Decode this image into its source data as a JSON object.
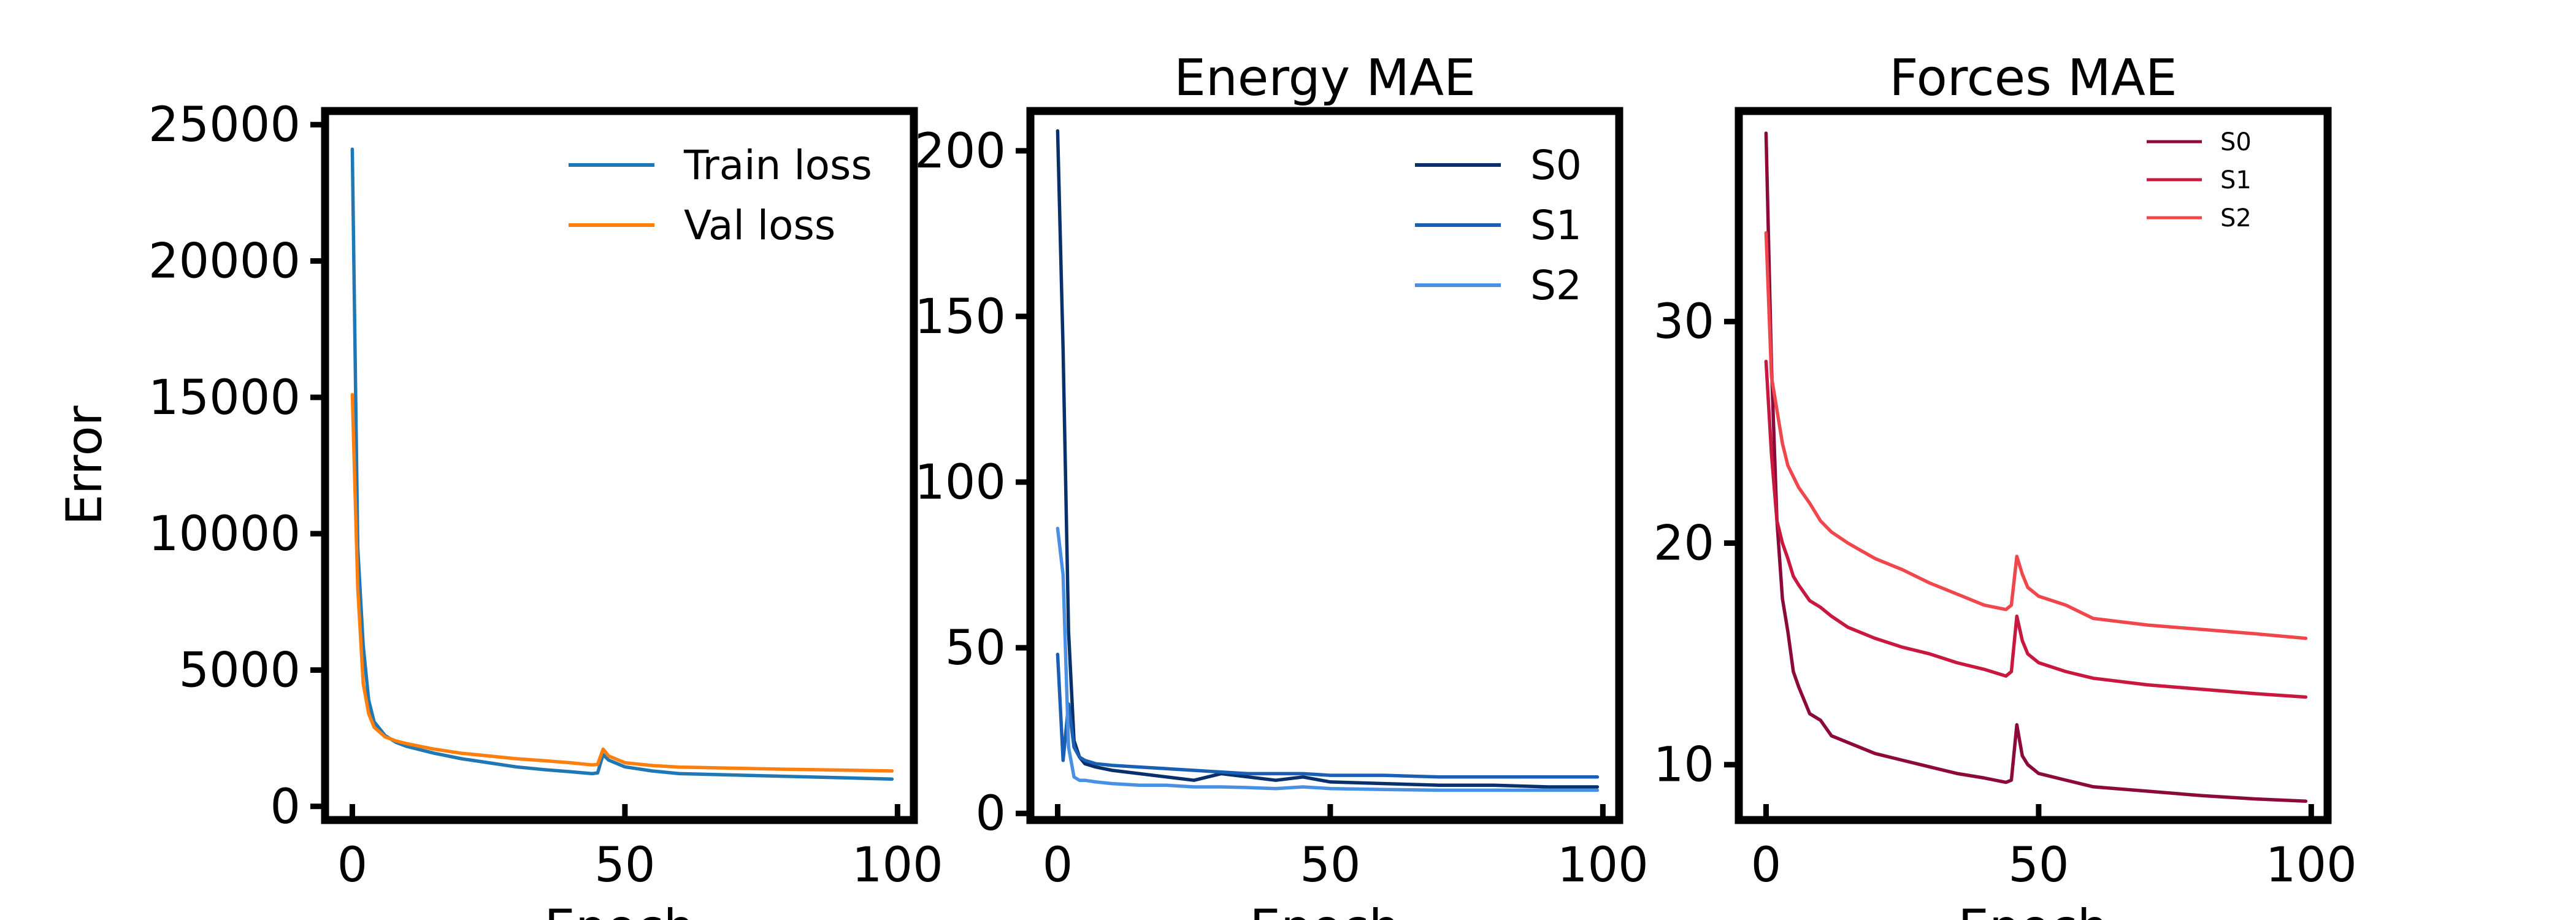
{
  "chart_data": [
    {
      "type": "line",
      "title": "",
      "xlabel": "Epoch",
      "ylabel": "Error",
      "xlim": [
        -5,
        103
      ],
      "ylim": [
        -500,
        25500
      ],
      "xticks": [
        0,
        50,
        100
      ],
      "yticks": [
        0,
        5000,
        10000,
        15000,
        20000,
        25000
      ],
      "grid": false,
      "legend_position": "top-right",
      "legend_size": "normal",
      "series": [
        {
          "name": "Train loss",
          "color": "#1f77b4",
          "x": [
            0,
            1,
            2,
            3,
            4,
            6,
            8,
            10,
            15,
            20,
            25,
            30,
            35,
            40,
            44,
            45,
            46,
            47,
            50,
            55,
            60,
            70,
            80,
            90,
            99
          ],
          "y": [
            24100,
            9500,
            5900,
            3900,
            3100,
            2600,
            2350,
            2200,
            1950,
            1750,
            1600,
            1450,
            1350,
            1270,
            1200,
            1230,
            1900,
            1700,
            1450,
            1300,
            1200,
            1150,
            1100,
            1050,
            1000
          ]
        },
        {
          "name": "Val loss",
          "color": "#ff7f0e",
          "x": [
            0,
            1,
            2,
            3,
            4,
            6,
            8,
            10,
            15,
            20,
            25,
            30,
            35,
            40,
            44,
            45,
            46,
            47,
            50,
            55,
            60,
            70,
            80,
            90,
            99
          ],
          "y": [
            15100,
            8000,
            4500,
            3400,
            2900,
            2550,
            2400,
            2300,
            2100,
            1950,
            1850,
            1750,
            1680,
            1600,
            1520,
            1540,
            2100,
            1850,
            1600,
            1500,
            1440,
            1400,
            1360,
            1330,
            1300
          ]
        }
      ]
    },
    {
      "type": "line",
      "title": "Energy MAE",
      "xlabel": "Epoch",
      "ylabel": "",
      "xlim": [
        -5,
        103
      ],
      "ylim": [
        -2,
        212
      ],
      "xticks": [
        0,
        50,
        100
      ],
      "yticks": [
        0,
        50,
        100,
        150,
        200
      ],
      "grid": false,
      "legend_position": "top-right",
      "legend_size": "normal",
      "series": [
        {
          "name": "S0",
          "color": "#08306b",
          "x": [
            0,
            1,
            2,
            3,
            4,
            5,
            7,
            10,
            15,
            20,
            25,
            30,
            35,
            40,
            45,
            50,
            60,
            70,
            80,
            90,
            99
          ],
          "y": [
            206,
            140,
            55,
            22,
            17,
            15,
            14,
            13,
            12,
            11,
            10,
            12,
            11,
            10,
            11,
            9.5,
            9,
            8.5,
            8.5,
            8,
            8
          ]
        },
        {
          "name": "S1",
          "color": "#1a5fb4",
          "x": [
            0,
            1,
            2,
            3,
            4,
            5,
            7,
            10,
            15,
            20,
            25,
            30,
            35,
            40,
            45,
            50,
            60,
            70,
            80,
            90,
            99
          ],
          "y": [
            48,
            16,
            33,
            20,
            17,
            16,
            15,
            14.5,
            14,
            13.5,
            13,
            12.5,
            12,
            12,
            12,
            11.5,
            11.5,
            11,
            11,
            11,
            11
          ]
        },
        {
          "name": "S2",
          "color": "#4a90e2",
          "x": [
            0,
            1,
            2,
            3,
            4,
            5,
            7,
            10,
            15,
            20,
            25,
            30,
            35,
            40,
            45,
            50,
            60,
            70,
            80,
            90,
            99
          ],
          "y": [
            86,
            72,
            20,
            11,
            10,
            10,
            9.5,
            9,
            8.5,
            8.5,
            8,
            8,
            7.8,
            7.5,
            8,
            7.5,
            7.2,
            7,
            7,
            7,
            7
          ]
        }
      ]
    },
    {
      "type": "line",
      "title": "Forces MAE",
      "xlabel": "Epoch",
      "ylabel": "",
      "xlim": [
        -5,
        103
      ],
      "ylim": [
        7.5,
        39.5
      ],
      "xticks": [
        0,
        50,
        100
      ],
      "yticks": [
        10,
        20,
        30
      ],
      "grid": false,
      "legend_position": "top-right",
      "legend_size": "small",
      "series": [
        {
          "name": "S0",
          "color": "#8b0a3a",
          "x": [
            0,
            1,
            2,
            3,
            4,
            5,
            6,
            8,
            10,
            12,
            15,
            20,
            25,
            30,
            35,
            40,
            44,
            45,
            46,
            47,
            48,
            50,
            55,
            60,
            70,
            80,
            90,
            99
          ],
          "y": [
            38.5,
            28,
            21,
            17.5,
            16,
            14.2,
            13.5,
            12.3,
            12,
            11.3,
            11,
            10.5,
            10.2,
            9.9,
            9.6,
            9.4,
            9.2,
            9.3,
            11.8,
            10.4,
            10,
            9.6,
            9.3,
            9,
            8.8,
            8.6,
            8.45,
            8.35
          ]
        },
        {
          "name": "S1",
          "color": "#c8183f",
          "x": [
            0,
            1,
            2,
            3,
            4,
            5,
            6,
            8,
            10,
            12,
            15,
            20,
            25,
            30,
            35,
            40,
            44,
            45,
            46,
            47,
            48,
            50,
            55,
            60,
            70,
            80,
            90,
            99
          ],
          "y": [
            28.2,
            24,
            21,
            20,
            19.3,
            18.5,
            18.1,
            17.4,
            17.1,
            16.7,
            16.2,
            15.7,
            15.3,
            15,
            14.6,
            14.3,
            14,
            14.2,
            16.7,
            15.6,
            15,
            14.6,
            14.2,
            13.9,
            13.6,
            13.4,
            13.2,
            13.05
          ]
        },
        {
          "name": "S2",
          "color": "#f0474d",
          "x": [
            0,
            1,
            2,
            3,
            4,
            5,
            6,
            8,
            10,
            12,
            15,
            20,
            25,
            30,
            35,
            40,
            44,
            45,
            46,
            47,
            48,
            50,
            55,
            60,
            70,
            80,
            90,
            99
          ],
          "y": [
            34,
            27.5,
            26,
            24.5,
            23.5,
            23,
            22.5,
            21.8,
            21,
            20.5,
            20,
            19.3,
            18.8,
            18.2,
            17.7,
            17.2,
            17,
            17.2,
            19.4,
            18.6,
            18,
            17.6,
            17.2,
            16.6,
            16.3,
            16.1,
            15.9,
            15.7
          ]
        }
      ]
    }
  ]
}
